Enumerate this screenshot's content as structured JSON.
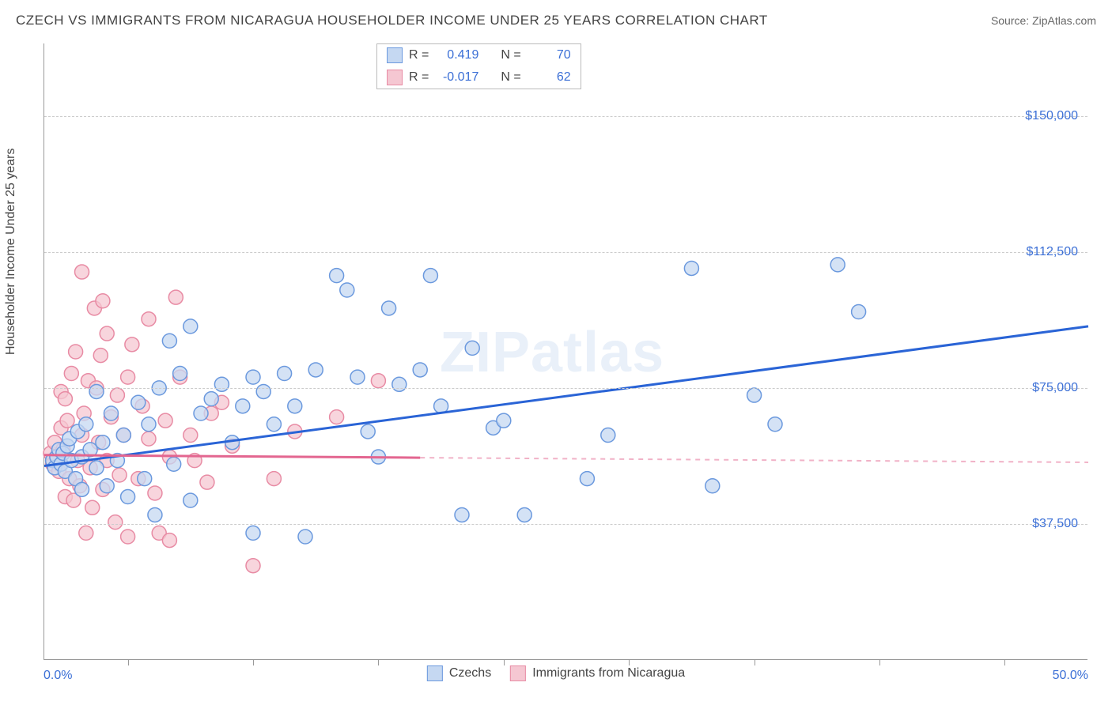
{
  "title": "CZECH VS IMMIGRANTS FROM NICARAGUA HOUSEHOLDER INCOME UNDER 25 YEARS CORRELATION CHART",
  "source": "Source: ZipAtlas.com",
  "watermark": "ZIPatlas",
  "chart": {
    "type": "scatter",
    "background_color": "#ffffff",
    "grid_color": "#cccccc",
    "axis_color": "#999999",
    "xlim": [
      0,
      50
    ],
    "ylim": [
      0,
      170000
    ],
    "x_start_label": "0.0%",
    "x_end_label": "50.0%",
    "x_ticks": [
      4,
      10,
      16,
      22,
      28,
      34,
      40,
      46
    ],
    "y_label": "Householder Income Under 25 years",
    "y_ticks": [
      {
        "v": 37500,
        "label": "$37,500"
      },
      {
        "v": 75000,
        "label": "$75,000"
      },
      {
        "v": 112500,
        "label": "$112,500"
      },
      {
        "v": 150000,
        "label": "$150,000"
      }
    ],
    "y_label_color": "#3b6fd6",
    "x_label_color": "#3b6fd6",
    "marker_radius": 9,
    "marker_stroke_width": 1.5,
    "trend_line_width": 3,
    "series": [
      {
        "name": "Czechs",
        "fill": "#c5d8f2",
        "stroke": "#6b99de",
        "line_color": "#2a64d6",
        "R": "0.419",
        "N": "70",
        "trend": {
          "x1": 0,
          "y1": 53500,
          "x2": 50,
          "y2": 92000
        },
        "trend_solid_until": 50,
        "points": [
          [
            0.4,
            55000
          ],
          [
            0.5,
            53000
          ],
          [
            0.6,
            56000
          ],
          [
            0.7,
            58000
          ],
          [
            0.8,
            54000
          ],
          [
            0.9,
            57000
          ],
          [
            1.0,
            52000
          ],
          [
            1.1,
            59000
          ],
          [
            1.2,
            61000
          ],
          [
            1.3,
            55000
          ],
          [
            1.5,
            50000
          ],
          [
            1.6,
            63000
          ],
          [
            1.8,
            56000
          ],
          [
            1.8,
            47000
          ],
          [
            2.0,
            65000
          ],
          [
            2.2,
            58000
          ],
          [
            2.5,
            53000
          ],
          [
            2.5,
            74000
          ],
          [
            2.8,
            60000
          ],
          [
            3.0,
            48000
          ],
          [
            3.2,
            68000
          ],
          [
            3.5,
            55000
          ],
          [
            3.8,
            62000
          ],
          [
            4.0,
            45000
          ],
          [
            4.5,
            71000
          ],
          [
            4.8,
            50000
          ],
          [
            5.0,
            65000
          ],
          [
            5.3,
            40000
          ],
          [
            5.5,
            75000
          ],
          [
            6.0,
            88000
          ],
          [
            6.2,
            54000
          ],
          [
            6.5,
            79000
          ],
          [
            7.0,
            44000
          ],
          [
            7.0,
            92000
          ],
          [
            7.5,
            68000
          ],
          [
            8.0,
            72000
          ],
          [
            8.5,
            76000
          ],
          [
            9.0,
            60000
          ],
          [
            9.5,
            70000
          ],
          [
            10.0,
            78000
          ],
          [
            10.0,
            35000
          ],
          [
            10.5,
            74000
          ],
          [
            11.0,
            65000
          ],
          [
            11.5,
            79000
          ],
          [
            12.0,
            70000
          ],
          [
            12.5,
            34000
          ],
          [
            13.0,
            80000
          ],
          [
            14.0,
            106000
          ],
          [
            14.5,
            102000
          ],
          [
            15.0,
            78000
          ],
          [
            15.5,
            63000
          ],
          [
            16.0,
            56000
          ],
          [
            16.5,
            97000
          ],
          [
            17.0,
            76000
          ],
          [
            18.0,
            80000
          ],
          [
            18.5,
            106000
          ],
          [
            19.0,
            70000
          ],
          [
            20.0,
            40000
          ],
          [
            20.5,
            86000
          ],
          [
            21.5,
            64000
          ],
          [
            22.0,
            66000
          ],
          [
            23.0,
            40000
          ],
          [
            26.0,
            50000
          ],
          [
            27.0,
            62000
          ],
          [
            31.0,
            108000
          ],
          [
            32.0,
            48000
          ],
          [
            34.0,
            73000
          ],
          [
            35.0,
            65000
          ],
          [
            38.0,
            109000
          ],
          [
            39.0,
            96000
          ]
        ]
      },
      {
        "name": "Immigrants from Nicaragua",
        "fill": "#f5c7d2",
        "stroke": "#e88ba4",
        "line_color": "#e36690",
        "R": "-0.017",
        "N": "62",
        "trend": {
          "x1": 0,
          "y1": 56500,
          "x2": 50,
          "y2": 54500
        },
        "trend_solid_until": 18,
        "points": [
          [
            0.3,
            57000
          ],
          [
            0.4,
            54000
          ],
          [
            0.5,
            60000
          ],
          [
            0.6,
            56000
          ],
          [
            0.7,
            52000
          ],
          [
            0.8,
            64000
          ],
          [
            0.8,
            74000
          ],
          [
            0.9,
            58000
          ],
          [
            1.0,
            45000
          ],
          [
            1.0,
            72000
          ],
          [
            1.1,
            66000
          ],
          [
            1.2,
            50000
          ],
          [
            1.3,
            79000
          ],
          [
            1.4,
            44000
          ],
          [
            1.5,
            85000
          ],
          [
            1.6,
            55000
          ],
          [
            1.7,
            48000
          ],
          [
            1.8,
            62000
          ],
          [
            1.8,
            107000
          ],
          [
            1.9,
            68000
          ],
          [
            2.0,
            35000
          ],
          [
            2.1,
            77000
          ],
          [
            2.2,
            53000
          ],
          [
            2.3,
            42000
          ],
          [
            2.4,
            97000
          ],
          [
            2.5,
            75000
          ],
          [
            2.6,
            60000
          ],
          [
            2.7,
            84000
          ],
          [
            2.8,
            47000
          ],
          [
            2.8,
            99000
          ],
          [
            3.0,
            90000
          ],
          [
            3.0,
            55000
          ],
          [
            3.2,
            67000
          ],
          [
            3.4,
            38000
          ],
          [
            3.5,
            73000
          ],
          [
            3.6,
            51000
          ],
          [
            3.8,
            62000
          ],
          [
            4.0,
            78000
          ],
          [
            4.0,
            34000
          ],
          [
            4.2,
            87000
          ],
          [
            4.5,
            50000
          ],
          [
            4.7,
            70000
          ],
          [
            5.0,
            61000
          ],
          [
            5.0,
            94000
          ],
          [
            5.3,
            46000
          ],
          [
            5.5,
            35000
          ],
          [
            5.8,
            66000
          ],
          [
            6.0,
            56000
          ],
          [
            6.0,
            33000
          ],
          [
            6.3,
            100000
          ],
          [
            6.5,
            78000
          ],
          [
            7.0,
            62000
          ],
          [
            7.2,
            55000
          ],
          [
            7.8,
            49000
          ],
          [
            8.0,
            68000
          ],
          [
            8.5,
            71000
          ],
          [
            9.0,
            59000
          ],
          [
            10.0,
            26000
          ],
          [
            11.0,
            50000
          ],
          [
            12.0,
            63000
          ],
          [
            14.0,
            67000
          ],
          [
            16.0,
            77000
          ]
        ]
      }
    ]
  },
  "stat_legend": {
    "label_R": "R =",
    "label_N": "N ="
  },
  "series_legend_title": ""
}
